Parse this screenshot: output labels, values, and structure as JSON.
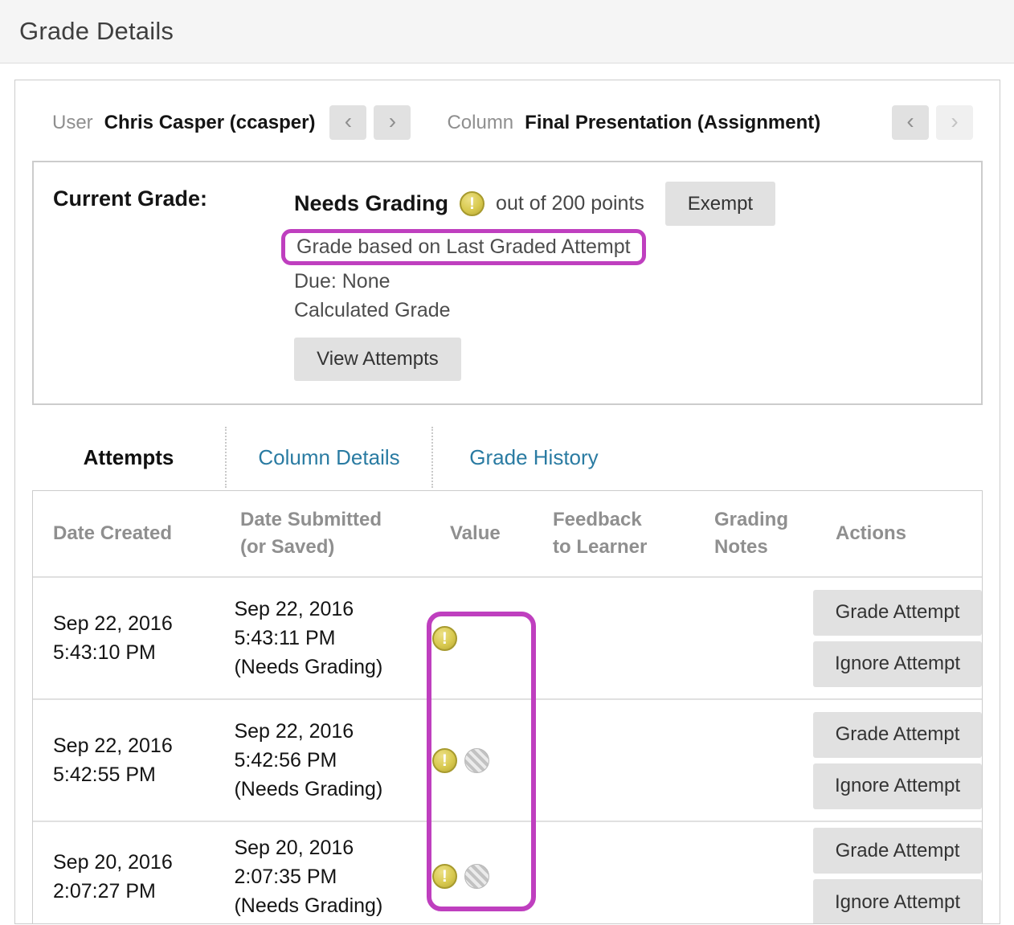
{
  "page": {
    "title": "Grade Details"
  },
  "icons": {
    "chevron_left": "‹",
    "chevron_right": "›",
    "needs_grading_mark": "!"
  },
  "colors": {
    "highlight_magenta": "#bf3fbf",
    "needs_grading_yellow": "#d8c94f",
    "tab_link_blue": "#2a7ba2"
  },
  "entity_nav": {
    "user_label": "User",
    "user_name": "Chris Casper (ccasper)",
    "column_label": "Column",
    "column_name": "Final Presentation (Assignment)"
  },
  "current_grade": {
    "label": "Current Grade:",
    "status": "Needs Grading",
    "points_text": "out of 200 points",
    "exempt_button": "Exempt",
    "highlighted_note": "Grade based on Last Graded Attempt",
    "due_text": "Due: None",
    "grade_type": "Calculated Grade",
    "view_attempts_button": "View Attempts"
  },
  "tabs": [
    {
      "label": "Attempts",
      "active": true
    },
    {
      "label": "Column Details",
      "active": false
    },
    {
      "label": "Grade History",
      "active": false
    }
  ],
  "table": {
    "headers": [
      {
        "line1": "Date Created",
        "line2": ""
      },
      {
        "line1": "Date Submitted",
        "line2": "(or Saved)"
      },
      {
        "line1": "Value",
        "line2": ""
      },
      {
        "line1": "Feedback",
        "line2": "to Learner"
      },
      {
        "line1": "Grading",
        "line2": "Notes"
      },
      {
        "line1": "Actions",
        "line2": ""
      }
    ],
    "rows": [
      {
        "created_date": "Sep 22, 2016",
        "created_time": "5:43:10 PM",
        "submitted_date": "Sep 22, 2016",
        "submitted_time": "5:43:11 PM",
        "submitted_status": "(Needs Grading)",
        "icons": [
          "needs-grading"
        ],
        "feedback": "",
        "grading_notes": "",
        "grade_button": "Grade Attempt",
        "ignore_button": "Ignore Attempt"
      },
      {
        "created_date": "Sep 22, 2016",
        "created_time": "5:42:55 PM",
        "submitted_date": "Sep 22, 2016",
        "submitted_time": "5:42:56 PM",
        "submitted_status": "(Needs Grading)",
        "icons": [
          "needs-grading",
          "ignored"
        ],
        "feedback": "",
        "grading_notes": "",
        "grade_button": "Grade Attempt",
        "ignore_button": "Ignore Attempt"
      },
      {
        "created_date": "Sep 20, 2016",
        "created_time": "2:07:27 PM",
        "submitted_date": "Sep 20, 2016",
        "submitted_time": "2:07:35 PM",
        "submitted_status": "(Needs Grading)",
        "icons": [
          "needs-grading",
          "ignored"
        ],
        "feedback": "",
        "grading_notes": "",
        "grade_button": "Grade Attempt",
        "ignore_button": "Ignore Attempt"
      }
    ]
  }
}
